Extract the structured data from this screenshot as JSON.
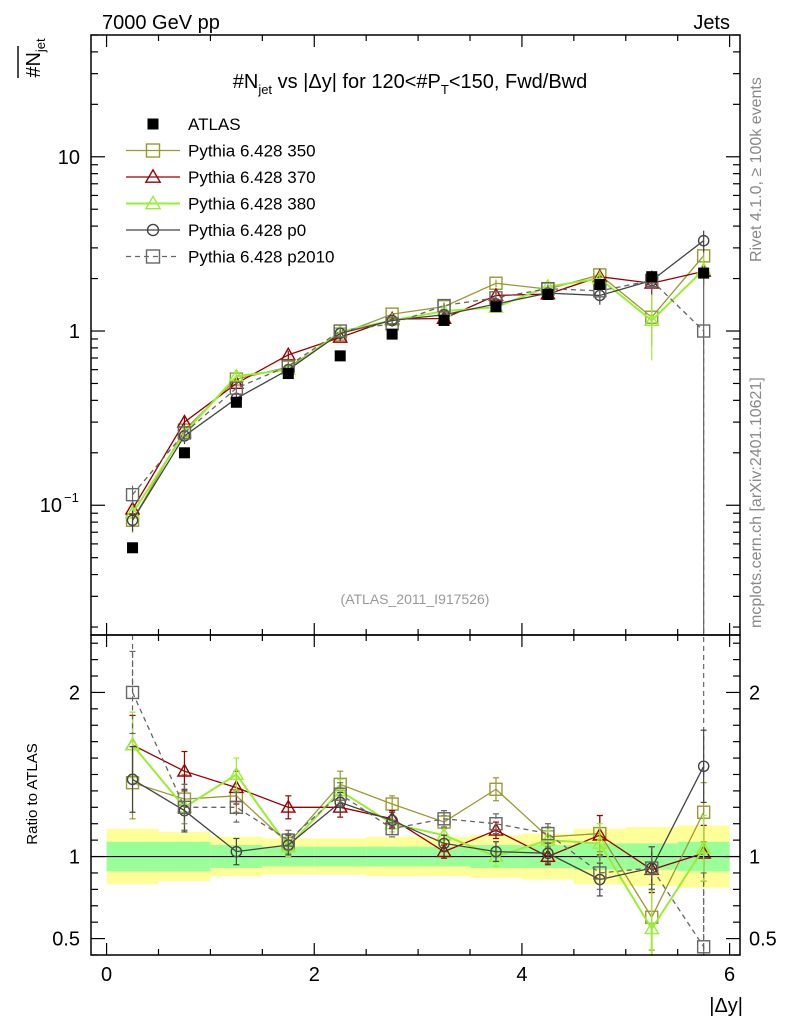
{
  "header": {
    "left": "7000 GeV pp",
    "right": "Jets"
  },
  "side_labels": {
    "rivet": "Rivet 4.1.0, ≥ 100k events",
    "mcplots": "mcplots.cern.ch [arXiv:2401.10621]"
  },
  "chart_data": {
    "type": "line",
    "title": "#N̄jet vs |Δy| for 120<#P̄T<150, Fwd/Bwd",
    "analysis_label": "(ATLAS_2011_I917526)",
    "xlabel": "|Δy|",
    "ylabel_main": "#N̄jet",
    "ylabel_ratio": "Ratio to ATLAS",
    "xlim": [
      -0.15,
      6.1
    ],
    "ylim_main": [
      0.018,
      50
    ],
    "ylim_ratio": [
      0.4,
      2.35
    ],
    "x_ticks": [
      "0",
      "2",
      "4",
      "6"
    ],
    "x_tick_values": [
      0,
      2,
      4,
      6
    ],
    "y_main_ticks": [
      {
        "v": 0.1,
        "base": "10",
        "exp": "−1"
      },
      {
        "v": 1,
        "base": "1",
        "exp": ""
      },
      {
        "v": 10,
        "base": "10",
        "exp": ""
      }
    ],
    "y_ratio_ticks": [
      {
        "v": 0.5,
        "label": "0.5"
      },
      {
        "v": 1,
        "label": "1"
      },
      {
        "v": 2,
        "label": "2"
      }
    ],
    "x": [
      0.25,
      0.75,
      1.25,
      1.75,
      2.25,
      2.75,
      3.25,
      3.75,
      4.25,
      4.75,
      5.25,
      5.75
    ],
    "bin_edges": [
      0,
      0.5,
      1,
      1.5,
      2,
      2.5,
      3,
      3.5,
      4,
      4.5,
      5,
      5.5,
      6
    ],
    "data": {
      "name": "ATLAS",
      "values": [
        0.057,
        0.2,
        0.39,
        0.57,
        0.72,
        0.96,
        1.15,
        1.38,
        1.62,
        1.85,
        2.05,
        2.15
      ],
      "band_inner": [
        0.09,
        0.09,
        0.07,
        0.06,
        0.06,
        0.06,
        0.06,
        0.07,
        0.07,
        0.08,
        0.08,
        0.09
      ],
      "band_outer": [
        0.17,
        0.15,
        0.12,
        0.11,
        0.11,
        0.12,
        0.12,
        0.13,
        0.14,
        0.17,
        0.18,
        0.19
      ]
    },
    "series": [
      {
        "name": "Pythia 6.428 350",
        "color": "#999933",
        "marker": "square-open",
        "dashed": false,
        "values": [
          0.082,
          0.27,
          0.53,
          0.62,
          0.96,
          1.25,
          1.38,
          1.88,
          1.74,
          2.1,
          1.2,
          2.7
        ],
        "ratio": [
          1.45,
          1.35,
          1.37,
          1.08,
          1.44,
          1.32,
          1.21,
          1.41,
          1.12,
          1.14,
          0.63,
          1.27
        ],
        "ratio_err": [
          0.22,
          0.15,
          0.1,
          0.06,
          0.08,
          0.05,
          0.04,
          0.07,
          0.06,
          0.11,
          0.2,
          0.18
        ]
      },
      {
        "name": "Pythia 6.428 370",
        "color": "#990000",
        "marker": "triangle-open",
        "dashed": false,
        "values": [
          0.095,
          0.3,
          0.5,
          0.73,
          0.92,
          1.17,
          1.18,
          1.6,
          1.63,
          2.05,
          1.88,
          2.2
        ],
        "ratio": [
          1.68,
          1.52,
          1.42,
          1.3,
          1.3,
          1.23,
          1.03,
          1.16,
          1.0,
          1.13,
          0.92,
          1.02
        ],
        "ratio_err": [
          0.18,
          0.12,
          0.1,
          0.07,
          0.06,
          0.05,
          0.04,
          0.05,
          0.05,
          0.12,
          0.14,
          0.17
        ]
      },
      {
        "name": "Pythia 6.428 380",
        "color": "#99ee33",
        "marker": "triangle-open",
        "dashed": false,
        "values": [
          0.09,
          0.26,
          0.55,
          0.6,
          0.99,
          1.15,
          1.3,
          1.37,
          1.8,
          2.0,
          1.15,
          2.25
        ],
        "ratio": [
          1.68,
          1.3,
          1.5,
          1.06,
          1.4,
          1.2,
          1.13,
          1.0,
          1.1,
          1.08,
          0.56,
          1.05
        ],
        "ratio_err": [
          0.2,
          0.14,
          0.1,
          0.06,
          0.07,
          0.05,
          0.05,
          0.06,
          0.06,
          0.12,
          0.23,
          0.2
        ]
      },
      {
        "name": "Pythia 6.428 p0",
        "color": "#444444",
        "marker": "circle-open",
        "dashed": false,
        "values": [
          0.082,
          0.25,
          0.41,
          0.6,
          0.97,
          1.15,
          1.24,
          1.43,
          1.65,
          1.6,
          1.95,
          3.3
        ],
        "ratio": [
          1.47,
          1.28,
          1.03,
          1.07,
          1.33,
          1.22,
          1.08,
          1.03,
          1.02,
          0.86,
          0.93,
          1.55
        ],
        "ratio_err": [
          0.2,
          0.13,
          0.08,
          0.06,
          0.06,
          0.05,
          0.05,
          0.06,
          0.06,
          0.1,
          0.13,
          0.22
        ]
      },
      {
        "name": "Pythia 6.428 p2010",
        "color": "#666666",
        "marker": "square-open",
        "dashed": true,
        "values": [
          0.115,
          0.26,
          0.47,
          0.63,
          1.0,
          1.1,
          1.4,
          1.55,
          1.75,
          1.7,
          1.95,
          1.0
        ],
        "ratio": [
          2.0,
          1.3,
          1.3,
          1.1,
          1.38,
          1.17,
          1.23,
          1.2,
          1.14,
          0.9,
          0.93,
          0.45
        ],
        "ratio_err": [
          0.25,
          0.14,
          0.09,
          0.06,
          0.07,
          0.05,
          0.05,
          0.06,
          0.06,
          0.1,
          0.13,
          0.45
        ]
      }
    ],
    "legend_position": "top-left"
  }
}
